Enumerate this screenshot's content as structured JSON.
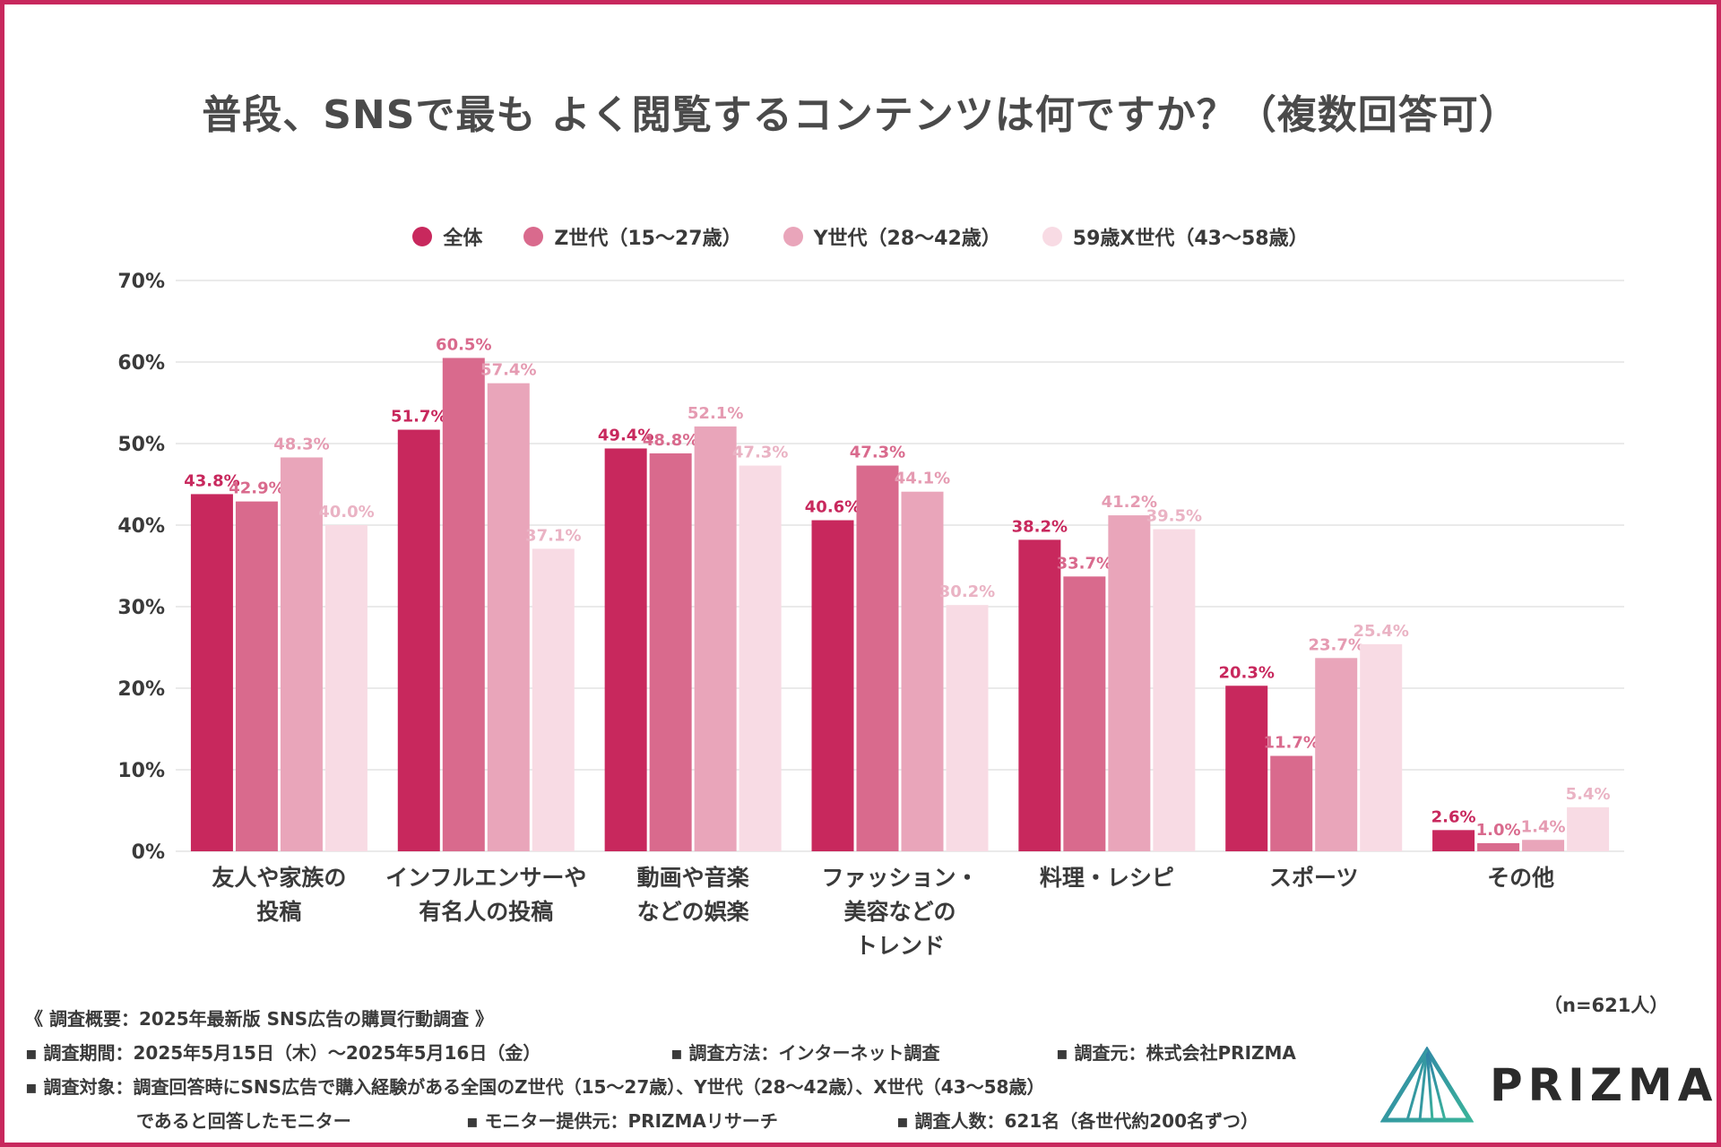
{
  "colors": {
    "border": "#c8285d",
    "grid": "#e4e4e4",
    "series": [
      "#c8285d",
      "#d96a8d",
      "#e9a5ba",
      "#f8dbe4"
    ],
    "label": [
      "#c8285d",
      "#d96a8d",
      "#e59bb2",
      "#eab3c4"
    ]
  },
  "chart_data": {
    "type": "bar",
    "title": "普段、SNSで最も よく閲覧するコンテンツは何ですか？（複数回答可）",
    "ylim": [
      0,
      70
    ],
    "yticks": [
      "0%",
      "10%",
      "20%",
      "30%",
      "40%",
      "50%",
      "60%",
      "70%"
    ],
    "ytick_values": [
      0,
      10,
      20,
      30,
      40,
      50,
      60,
      70
    ],
    "grid": true,
    "legend_position": "top",
    "categories": [
      [
        "友人や家族の",
        "投稿"
      ],
      [
        "インフルエンサーや",
        "有名人の投稿"
      ],
      [
        "動画や音楽",
        "などの娯楽"
      ],
      [
        "ファッション・",
        "美容などの",
        "トレンド"
      ],
      [
        "料理・レシピ"
      ],
      [
        "スポーツ"
      ],
      [
        "その他"
      ]
    ],
    "series": [
      {
        "name": "全体",
        "values": [
          43.8,
          51.7,
          49.4,
          40.6,
          38.2,
          20.3,
          2.6
        ]
      },
      {
        "name": "Z世代（15〜27歳）",
        "values": [
          42.9,
          60.5,
          48.8,
          47.3,
          33.7,
          11.7,
          1.0
        ]
      },
      {
        "name": "Y世代（28〜42歳）",
        "values": [
          48.3,
          57.4,
          52.1,
          44.1,
          41.2,
          23.7,
          1.4
        ]
      },
      {
        "name": "59歳X世代（43〜58歳）",
        "values": [
          40.0,
          37.1,
          47.3,
          30.2,
          39.5,
          25.4,
          5.4
        ]
      }
    ]
  },
  "sample_size": "（n=621人）",
  "notes": {
    "overview": "《 調査概要：2025年最新版 SNS広告の購買行動調査 》",
    "period": "▪ 調査期間：2025年5月15日（木）〜2025年5月16日（金）",
    "method": "▪ 調査方法：インターネット調査",
    "source": "▪ 調査元：株式会社PRIZMA",
    "target": "▪ 調査対象：調査回答時にSNS広告で購入経験がある全国のZ世代（15〜27歳）、Y世代（28〜42歳）、X世代（43〜58歳）",
    "target_cont": "であると回答したモニター",
    "provider": "▪ モニター提供元：PRIZMAリサーチ",
    "count": "▪ 調査人数：621名（各世代約200名ずつ）"
  },
  "logo": {
    "text": "PRIZMA",
    "icon": "prism-triangle-icon"
  }
}
